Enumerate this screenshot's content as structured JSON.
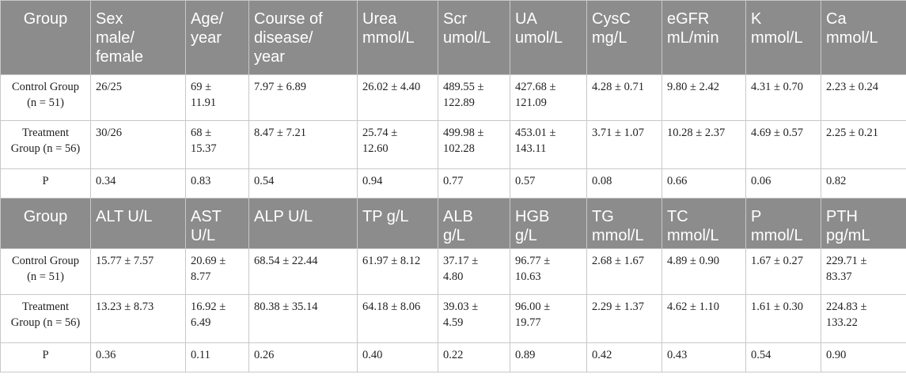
{
  "table1": {
    "headers": [
      "Group",
      "Sex\nmale/\nfemale",
      "Age/\nyear",
      "Course of\ndisease/\nyear",
      "Urea\nmmol/L",
      "Scr\numol/L",
      "UA\numol/L",
      "CysC\nmg/L",
      "eGFR\nmL/min",
      "K\nmmol/L",
      "Ca\nmmol/L"
    ],
    "rows": [
      [
        "Control Group\n(n = 51)",
        "26/25",
        "69 ±\n11.91",
        "7.97 ± 6.89",
        "26.02 ± 4.40",
        "489.55 ±\n122.89",
        "427.68 ±\n121.09",
        "4.28 ± 0.71",
        "9.80 ± 2.42",
        "4.31 ± 0.70",
        "2.23 ± 0.24"
      ],
      [
        "Treatment\nGroup (n = 56)",
        "30/26",
        "68 ±\n15.37",
        "8.47 ± 7.21",
        "25.74 ±\n12.60",
        "499.98 ±\n102.28",
        "453.01 ±\n143.11",
        "3.71 ± 1.07",
        "10.28 ± 2.37",
        "4.69 ± 0.57",
        "2.25 ± 0.21"
      ],
      [
        "P",
        "0.34",
        "0.83",
        "0.54",
        "0.94",
        "0.77",
        "0.57",
        "0.08",
        "0.66",
        "0.06",
        "0.82"
      ]
    ]
  },
  "table2": {
    "headers": [
      "Group",
      "ALT U/L",
      "AST\nU/L",
      "ALP U/L",
      "TP g/L",
      "ALB\ng/L",
      "HGB\ng/L",
      "TG\nmmol/L",
      "TC\nmmol/L",
      "P\nmmol/L",
      "PTH\npg/mL"
    ],
    "rows": [
      [
        "Control Group\n(n = 51)",
        "15.77 ± 7.57",
        "20.69 ±\n8.77",
        "68.54 ± 22.44",
        "61.97 ± 8.12",
        "37.17 ±\n4.80",
        "96.77 ±\n10.63",
        "2.68 ± 1.67",
        "4.89 ± 0.90",
        "1.67 ± 0.27",
        "229.71 ±\n83.37"
      ],
      [
        "Treatment\nGroup (n = 56)",
        "13.23 ± 8.73",
        "16.92 ±\n6.49",
        "80.38 ± 35.14",
        "64.18 ± 8.06",
        "39.03 ±\n4.59",
        "96.00 ±\n19.77",
        "2.29 ± 1.37",
        "4.62 ± 1.10",
        "1.61 ± 0.30",
        "224.83 ±\n133.22"
      ],
      [
        "P",
        "0.36",
        "0.11",
        "0.26",
        "0.40",
        "0.22",
        "0.89",
        "0.42",
        "0.43",
        "0.54",
        "0.90"
      ]
    ]
  }
}
